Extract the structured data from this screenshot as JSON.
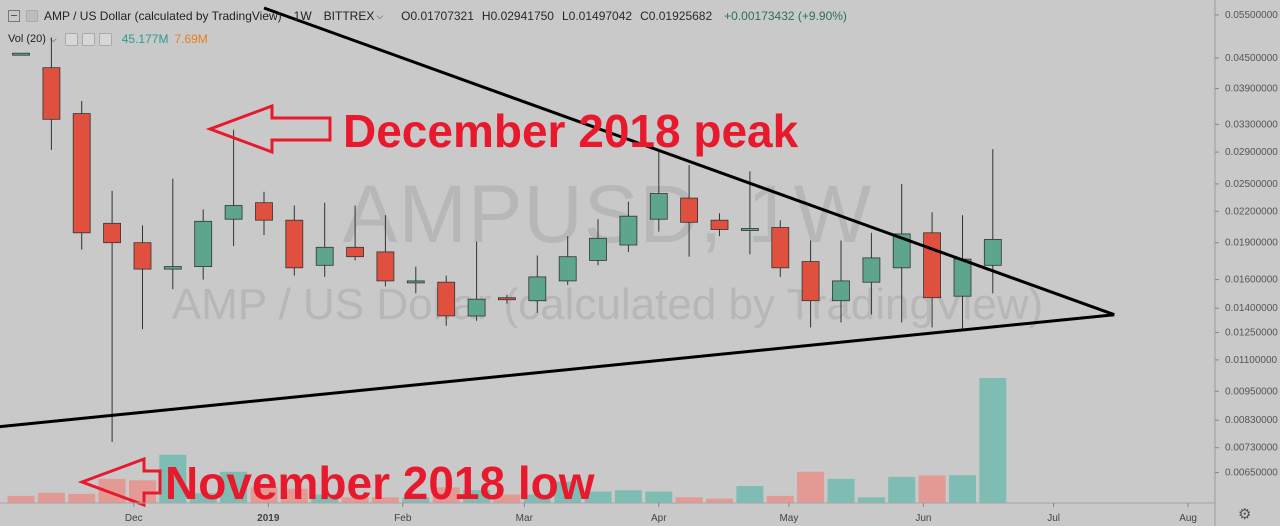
{
  "header": {
    "symbol": "AMP / US Dollar (calculated by TradingView)",
    "timeframe": "1W",
    "exchange": "BITTREX",
    "ohlc": {
      "o_label": "O",
      "o_value": "0.01707321",
      "h_label": "H",
      "h_value": "0.02941750",
      "l_label": "L",
      "l_value": "0.01497042",
      "c_label": "C",
      "c_value": "0.01925682",
      "change": "+0.00173432 (+9.90%)"
    },
    "volume_label": "Vol (20)",
    "volume_value": "45.177M",
    "volume_ma_value": "7.69M"
  },
  "watermark": {
    "symbol": "AMPUSD, 1W",
    "description": "AMP / US Dollar (calculated by TradingView)"
  },
  "annotations": {
    "peak_text": "December 2018 peak",
    "low_text": "November 2018 low"
  },
  "colors": {
    "up": "#5ea58e",
    "down": "#e0503f",
    "vol_up": "#7fbdb4",
    "vol_down": "#e39a94",
    "annotation": "#e8192c",
    "trendline": "#000000"
  },
  "chart_data": {
    "type": "candlestick",
    "y_scale": "log",
    "ylim": [
      0.00605,
      0.0568
    ],
    "y_ticks": [
      "0.05500000",
      "0.04500000",
      "0.03900000",
      "0.03300000",
      "0.02900000",
      "0.02500000",
      "0.02200000",
      "0.01900000",
      "0.01600000",
      "0.01400000",
      "0.01250000",
      "0.01100000",
      "0.00950000",
      "0.00830000",
      "0.00730000",
      "0.00650000"
    ],
    "x_ticks": [
      "Dec",
      "2019",
      "Feb",
      "Mar",
      "Apr",
      "May",
      "Jun",
      "Jul",
      "Aug"
    ],
    "candles": [
      {
        "week": "2018-11-05",
        "o": 0.046,
        "h": 0.046,
        "l": 0.046,
        "c": 0.046
      },
      {
        "week": "2018-11-12",
        "o": 0.043,
        "h": 0.0495,
        "l": 0.0293,
        "c": 0.0338
      },
      {
        "week": "2018-11-19",
        "o": 0.0347,
        "h": 0.0368,
        "l": 0.0184,
        "c": 0.0199
      },
      {
        "week": "2018-11-26",
        "o": 0.0208,
        "h": 0.0242,
        "l": 0.0075,
        "c": 0.019
      },
      {
        "week": "2018-12-03",
        "o": 0.019,
        "h": 0.0206,
        "l": 0.0127,
        "c": 0.0168
      },
      {
        "week": "2018-12-10",
        "o": 0.0168,
        "h": 0.0256,
        "l": 0.0153,
        "c": 0.017
      },
      {
        "week": "2018-12-17",
        "o": 0.017,
        "h": 0.0222,
        "l": 0.016,
        "c": 0.021
      },
      {
        "week": "2018-12-24",
        "o": 0.0212,
        "h": 0.0322,
        "l": 0.0187,
        "c": 0.0226
      },
      {
        "week": "2018-12-31",
        "o": 0.0229,
        "h": 0.0241,
        "l": 0.0197,
        "c": 0.0211
      },
      {
        "week": "2019-01-07",
        "o": 0.0211,
        "h": 0.0226,
        "l": 0.0163,
        "c": 0.0169
      },
      {
        "week": "2019-01-14",
        "o": 0.0171,
        "h": 0.0229,
        "l": 0.0162,
        "c": 0.0186
      },
      {
        "week": "2019-01-21",
        "o": 0.0186,
        "h": 0.0226,
        "l": 0.0175,
        "c": 0.0178
      },
      {
        "week": "2019-01-28",
        "o": 0.0182,
        "h": 0.0216,
        "l": 0.0155,
        "c": 0.0159
      },
      {
        "week": "2019-02-04",
        "o": 0.0159,
        "h": 0.017,
        "l": 0.015,
        "c": 0.0159
      },
      {
        "week": "2019-02-11",
        "o": 0.0158,
        "h": 0.0163,
        "l": 0.0129,
        "c": 0.0135
      },
      {
        "week": "2019-02-18",
        "o": 0.0135,
        "h": 0.0191,
        "l": 0.0132,
        "c": 0.0146
      },
      {
        "week": "2019-02-25",
        "o": 0.0147,
        "h": 0.0149,
        "l": 0.0143,
        "c": 0.0146
      },
      {
        "week": "2019-03-04",
        "o": 0.0145,
        "h": 0.0179,
        "l": 0.0137,
        "c": 0.0162
      },
      {
        "week": "2019-03-11",
        "o": 0.0159,
        "h": 0.0196,
        "l": 0.0156,
        "c": 0.0178
      },
      {
        "week": "2019-03-18",
        "o": 0.0175,
        "h": 0.0212,
        "l": 0.0171,
        "c": 0.0194
      },
      {
        "week": "2019-03-25",
        "o": 0.0188,
        "h": 0.023,
        "l": 0.0182,
        "c": 0.0215
      },
      {
        "week": "2019-04-01",
        "o": 0.0212,
        "h": 0.0292,
        "l": 0.02,
        "c": 0.0239
      },
      {
        "week": "2019-04-08",
        "o": 0.0234,
        "h": 0.0273,
        "l": 0.0178,
        "c": 0.0209
      },
      {
        "week": "2019-04-15",
        "o": 0.0211,
        "h": 0.0218,
        "l": 0.0196,
        "c": 0.0202
      },
      {
        "week": "2019-04-22",
        "o": 0.0203,
        "h": 0.0265,
        "l": 0.018,
        "c": 0.0203
      },
      {
        "week": "2019-04-29",
        "o": 0.0204,
        "h": 0.0211,
        "l": 0.0162,
        "c": 0.0169
      },
      {
        "week": "2019-05-06",
        "o": 0.0174,
        "h": 0.0192,
        "l": 0.0128,
        "c": 0.0145
      },
      {
        "week": "2019-05-13",
        "o": 0.0145,
        "h": 0.0192,
        "l": 0.0131,
        "c": 0.0159
      },
      {
        "week": "2019-05-20",
        "o": 0.0158,
        "h": 0.0199,
        "l": 0.0136,
        "c": 0.0177
      },
      {
        "week": "2019-05-27",
        "o": 0.0169,
        "h": 0.025,
        "l": 0.0131,
        "c": 0.0198
      },
      {
        "week": "2019-06-03",
        "o": 0.0199,
        "h": 0.0219,
        "l": 0.0128,
        "c": 0.0147
      },
      {
        "week": "2019-06-10",
        "o": 0.0148,
        "h": 0.0216,
        "l": 0.0126,
        "c": 0.0176
      },
      {
        "week": "2019-06-17",
        "o": 0.0171,
        "h": 0.0294,
        "l": 0.015,
        "c": 0.0193
      }
    ],
    "volume": [
      {
        "week": "2018-11-05",
        "v": 0.25,
        "up": false
      },
      {
        "week": "2018-11-12",
        "v": 0.36,
        "up": false
      },
      {
        "week": "2018-11-19",
        "v": 0.32,
        "up": false
      },
      {
        "week": "2018-11-26",
        "v": 0.85,
        "up": false
      },
      {
        "week": "2018-12-03",
        "v": 0.8,
        "up": false
      },
      {
        "week": "2018-12-10",
        "v": 1.7,
        "up": true
      },
      {
        "week": "2018-12-17",
        "v": 0.34,
        "up": true
      },
      {
        "week": "2018-12-24",
        "v": 1.1,
        "up": true
      },
      {
        "week": "2018-12-31",
        "v": 0.55,
        "up": false
      },
      {
        "week": "2019-01-07",
        "v": 0.5,
        "up": false
      },
      {
        "week": "2019-01-14",
        "v": 0.3,
        "up": true
      },
      {
        "week": "2019-01-21",
        "v": 0.2,
        "up": false
      },
      {
        "week": "2019-01-28",
        "v": 0.2,
        "up": false
      },
      {
        "week": "2019-02-04",
        "v": 0.2,
        "up": true
      },
      {
        "week": "2019-02-11",
        "v": 0.55,
        "up": false
      },
      {
        "week": "2019-02-18",
        "v": 0.45,
        "up": true
      },
      {
        "week": "2019-02-25",
        "v": 0.3,
        "up": false
      },
      {
        "week": "2019-03-04",
        "v": 0.3,
        "up": true
      },
      {
        "week": "2019-03-11",
        "v": 0.75,
        "up": true
      },
      {
        "week": "2019-03-18",
        "v": 0.4,
        "up": true
      },
      {
        "week": "2019-03-25",
        "v": 0.45,
        "up": true
      },
      {
        "week": "2019-04-01",
        "v": 0.4,
        "up": true
      },
      {
        "week": "2019-04-08",
        "v": 0.2,
        "up": false
      },
      {
        "week": "2019-04-15",
        "v": 0.15,
        "up": false
      },
      {
        "week": "2019-04-22",
        "v": 0.6,
        "up": true
      },
      {
        "week": "2019-04-29",
        "v": 0.25,
        "up": false
      },
      {
        "week": "2019-05-06",
        "v": 1.1,
        "up": false
      },
      {
        "week": "2019-05-13",
        "v": 0.85,
        "up": true
      },
      {
        "week": "2019-05-20",
        "v": 0.2,
        "up": true
      },
      {
        "week": "2019-05-27",
        "v": 0.92,
        "up": true
      },
      {
        "week": "2019-06-03",
        "v": 0.97,
        "up": false
      },
      {
        "week": "2019-06-10",
        "v": 0.98,
        "up": true
      },
      {
        "week": "2019-06-17",
        "v": 4.4,
        "up": true
      }
    ],
    "trendlines": [
      {
        "name": "upper-trendline",
        "from": {
          "week": "2018-12-31",
          "price": 0.0568
        },
        "to": {
          "week": "2019-07-15",
          "price": 0.01358
        }
      },
      {
        "name": "lower-trendline",
        "from": {
          "week": "2018-10-29",
          "price": 0.00802
        },
        "to": {
          "week": "2019-07-15",
          "price": 0.01358
        }
      }
    ]
  }
}
